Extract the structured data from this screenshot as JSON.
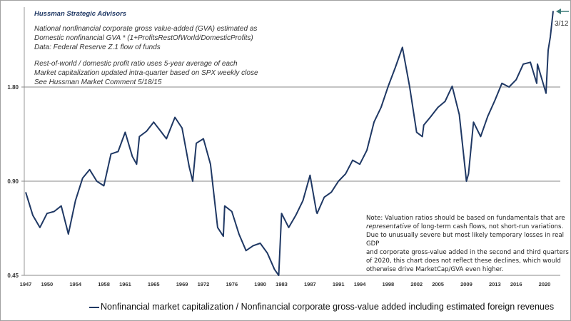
{
  "chart_data": {
    "type": "line",
    "title": "",
    "header": {
      "company": "Hussman Strategic Advisors",
      "lines1": [
        "National nonfinancial corporate gross value-added (GVA) estimated as",
        "Domestic nonfinancial GVA * (1+ProfitsRestOfWorld/DomesticProfits)",
        "Data: Federal Reserve Z.1 flow of funds"
      ],
      "lines2": [
        "Rest-of-world / domestic profit ratio uses 5-year average of each",
        "Market capitalization updated intra-quarter  based on SPX weekly close",
        "See Hussman Market Comment 5/18/15"
      ]
    },
    "note": {
      "line1": "Note: Valuation ratios should be based on fundamentals that are",
      "line2_italic": "representative",
      "line2_rest": " of long-term cash flows, not short-run variations.",
      "line3": "Due to unusually severe but most likely temporary losses in real GDP",
      "line4": "and corporate gross-value added in the second and third quarters",
      "line5": "of 2020,  this chart  does not reflect these declines, which would",
      "line6": "otherwise drive MarketCap/GVA even higher."
    },
    "annotation": "3/12",
    "y_scale": "log",
    "ylim": [
      0.45,
      3.2
    ],
    "xlim": [
      1947,
      2021.3
    ],
    "y_ticks": [
      "0.45",
      "0.90",
      "1.80"
    ],
    "y_tick_values": [
      0.45,
      0.9,
      1.8
    ],
    "x_ticks": [
      "1947",
      "1950",
      "1954",
      "1958",
      "1961",
      "1965",
      "1969",
      "1972",
      "1976",
      "1980",
      "1983",
      "1987",
      "1991",
      "1994",
      "1998",
      "2002",
      "2005",
      "2009",
      "2013",
      "2016",
      "2020"
    ],
    "grid": "horizontal at y ticks",
    "series": [
      {
        "name": "Nonfinancial market capitalization / Nonfinancial corporate gross-value added including estimated foreign revenues",
        "color": "#1f3864",
        "x": [
          1947,
          1948,
          1949,
          1950,
          1951,
          1952,
          1953,
          1954,
          1955,
          1956,
          1957,
          1958,
          1959,
          1960,
          1961,
          1962,
          1962.6,
          1963,
          1964,
          1965,
          1966,
          1966.8,
          1968,
          1969,
          1970,
          1970.5,
          1971,
          1972,
          1973,
          1974,
          1974.8,
          1975,
          1976,
          1977,
          1978,
          1979,
          1980,
          1981,
          1982,
          1982.6,
          1983,
          1984,
          1985,
          1986,
          1987,
          1987.9,
          1988,
          1989,
          1990,
          1991,
          1992,
          1993,
          1994,
          1995,
          1996,
          1997,
          1998,
          1999,
          2000,
          2001,
          2002,
          2002.8,
          2003,
          2004,
          2005,
          2006,
          2007,
          2008,
          2009,
          2009.3,
          2010,
          2011,
          2012,
          2013,
          2014,
          2015,
          2016,
          2017,
          2018,
          2018.9,
          2019,
          2020.2,
          2020.5,
          2020.8,
          2021.2
        ],
        "values": [
          0.83,
          0.7,
          0.64,
          0.71,
          0.72,
          0.75,
          0.61,
          0.78,
          0.92,
          0.98,
          0.9,
          0.87,
          1.1,
          1.12,
          1.29,
          1.08,
          1.02,
          1.25,
          1.3,
          1.39,
          1.3,
          1.23,
          1.44,
          1.33,
          1.0,
          0.9,
          1.19,
          1.23,
          1.02,
          0.64,
          0.6,
          0.75,
          0.72,
          0.61,
          0.54,
          0.56,
          0.57,
          0.53,
          0.47,
          0.45,
          0.71,
          0.64,
          0.7,
          0.78,
          0.94,
          0.72,
          0.71,
          0.8,
          0.83,
          0.9,
          0.95,
          1.05,
          1.02,
          1.13,
          1.39,
          1.55,
          1.81,
          2.08,
          2.41,
          1.81,
          1.29,
          1.25,
          1.36,
          1.45,
          1.55,
          1.62,
          1.81,
          1.47,
          0.9,
          0.95,
          1.39,
          1.25,
          1.45,
          1.63,
          1.85,
          1.8,
          1.9,
          2.13,
          2.16,
          1.85,
          2.13,
          1.72,
          2.36,
          2.6,
          3.15
        ]
      }
    ]
  }
}
